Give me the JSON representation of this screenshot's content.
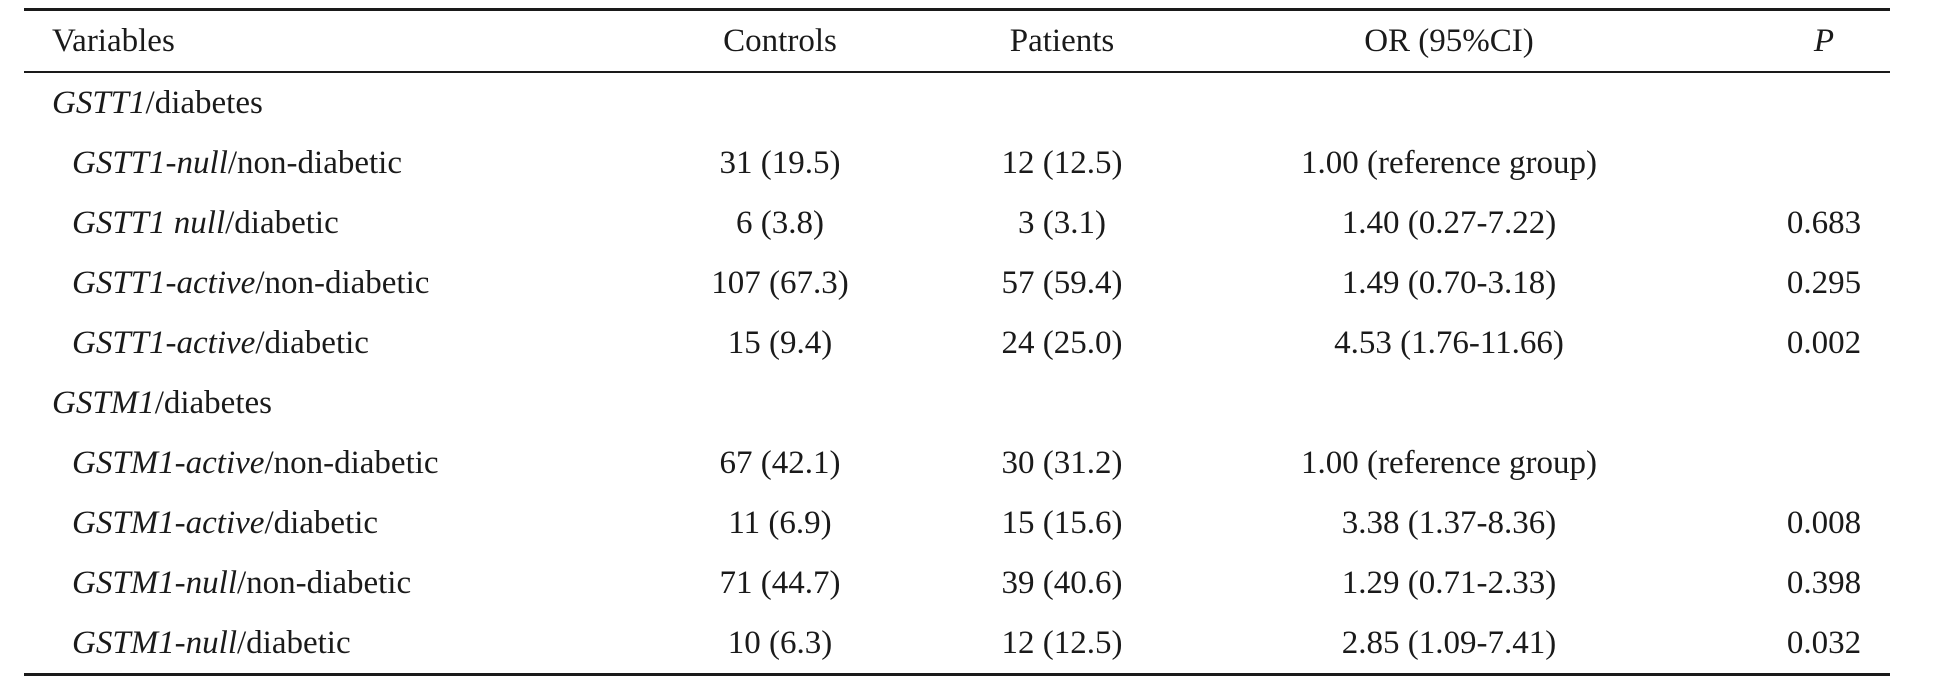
{
  "header": {
    "variables": "Variables",
    "controls": "Controls",
    "patients": "Patients",
    "or": "OR (95%CI)",
    "p": "P"
  },
  "groups": [
    {
      "gene": "GSTT1",
      "suffix": "/diabetes",
      "rows": [
        {
          "genotype": "GSTT1-null",
          "status": "/non-diabetic",
          "controls": "31 (19.5)",
          "patients": "12 (12.5)",
          "or": "1.00 (reference group)",
          "p": ""
        },
        {
          "genotype": "GSTT1 null",
          "status": "/diabetic",
          "controls": "6 (3.8)",
          "patients": "3 (3.1)",
          "or": "1.40 (0.27-7.22)",
          "p": "0.683"
        },
        {
          "genotype": "GSTT1-active",
          "status": "/non-diabetic",
          "controls": "107 (67.3)",
          "patients": "57 (59.4)",
          "or": "1.49 (0.70-3.18)",
          "p": "0.295"
        },
        {
          "genotype": "GSTT1-active",
          "status": "/diabetic",
          "controls": "15 (9.4)",
          "patients": "24 (25.0)",
          "or": "4.53 (1.76-11.66)",
          "p": "0.002"
        }
      ]
    },
    {
      "gene": "GSTM1",
      "suffix": "/diabetes",
      "rows": [
        {
          "genotype": "GSTM1-active",
          "status": "/non-diabetic",
          "controls": "67 (42.1)",
          "patients": "30 (31.2)",
          "or": "1.00 (reference group)",
          "p": ""
        },
        {
          "genotype": "GSTM1-active",
          "status": "/diabetic",
          "controls": "11 (6.9)",
          "patients": "15 (15.6)",
          "or": "3.38 (1.37-8.36)",
          "p": "0.008"
        },
        {
          "genotype": "GSTM1-null",
          "status": "/non-diabetic",
          "controls": "71 (44.7)",
          "patients": "39 (40.6)",
          "or": "1.29 (0.71-2.33)",
          "p": "0.398"
        },
        {
          "genotype": "GSTM1-null",
          "status": "/diabetic",
          "controls": "10 (6.3)",
          "patients": "12 (12.5)",
          "or": "2.85 (1.09-7.41)",
          "p": "0.032"
        }
      ]
    }
  ]
}
